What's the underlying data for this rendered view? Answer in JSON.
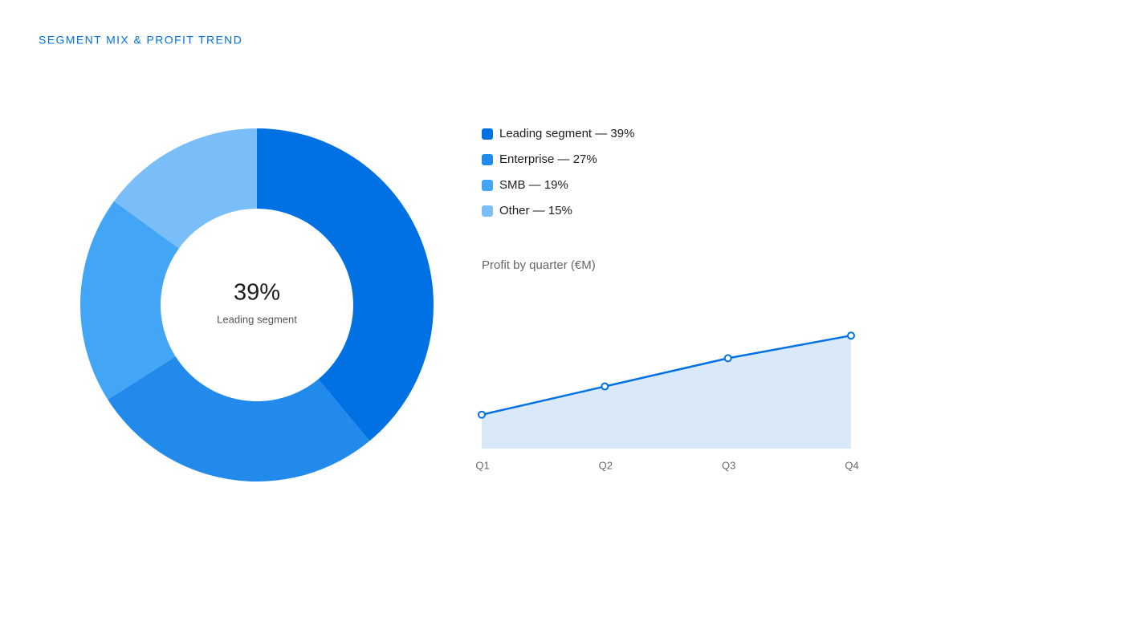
{
  "title": "SEGMENT MIX & PROFIT TREND",
  "chart_data": [
    {
      "type": "donut",
      "categories": [
        "Leading segment — 39%",
        "Enterprise — 27%",
        "SMB — 19%",
        "Other — 15%"
      ],
      "values": [
        39,
        27,
        19,
        15
      ],
      "colors": [
        "#0071e3",
        "#218aeb",
        "#42a5f5",
        "#79bdf9"
      ],
      "center_text": "39%",
      "center_label": "Leading segment"
    },
    {
      "type": "area",
      "title": "Profit by quarter (€M)",
      "categories": [
        "Q1",
        "Q2",
        "Q3",
        "Q4"
      ],
      "values": [
        1.2,
        2.2,
        3.2,
        4.0
      ],
      "ylim": [
        0,
        5
      ],
      "color": "#0071e3",
      "fill": "#d9e9f9"
    }
  ]
}
